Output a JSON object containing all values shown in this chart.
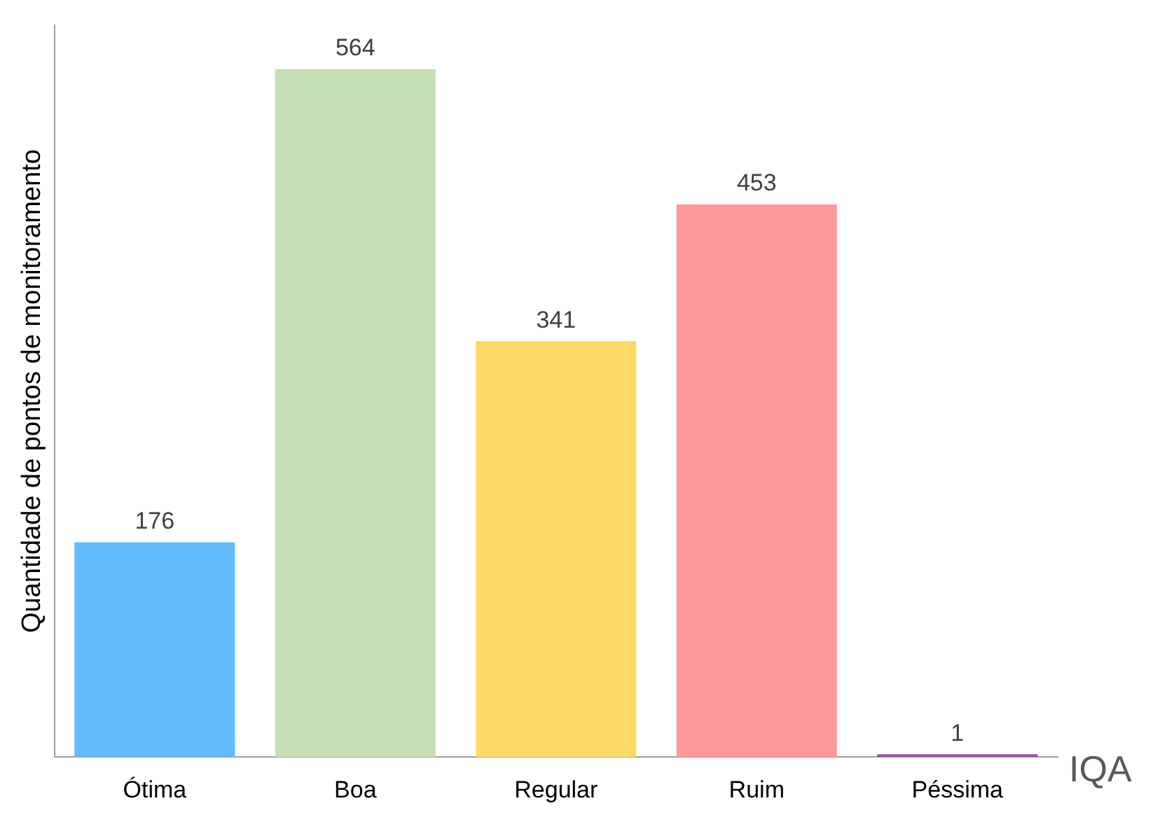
{
  "chart_data": {
    "type": "bar",
    "xlabel": "IQA",
    "ylabel": "Quantidade de pontos de monitoramento",
    "categories": [
      "Ótima",
      "Boa",
      "Regular",
      "Ruim",
      "Péssima"
    ],
    "values": [
      176,
      564,
      341,
      453,
      1
    ],
    "colors": [
      "#62bbfd",
      "#c5e0b4",
      "#ffd966",
      "#ff9999",
      "#9b4fa8"
    ],
    "data_labels": true,
    "grid": false,
    "legend": false
  }
}
